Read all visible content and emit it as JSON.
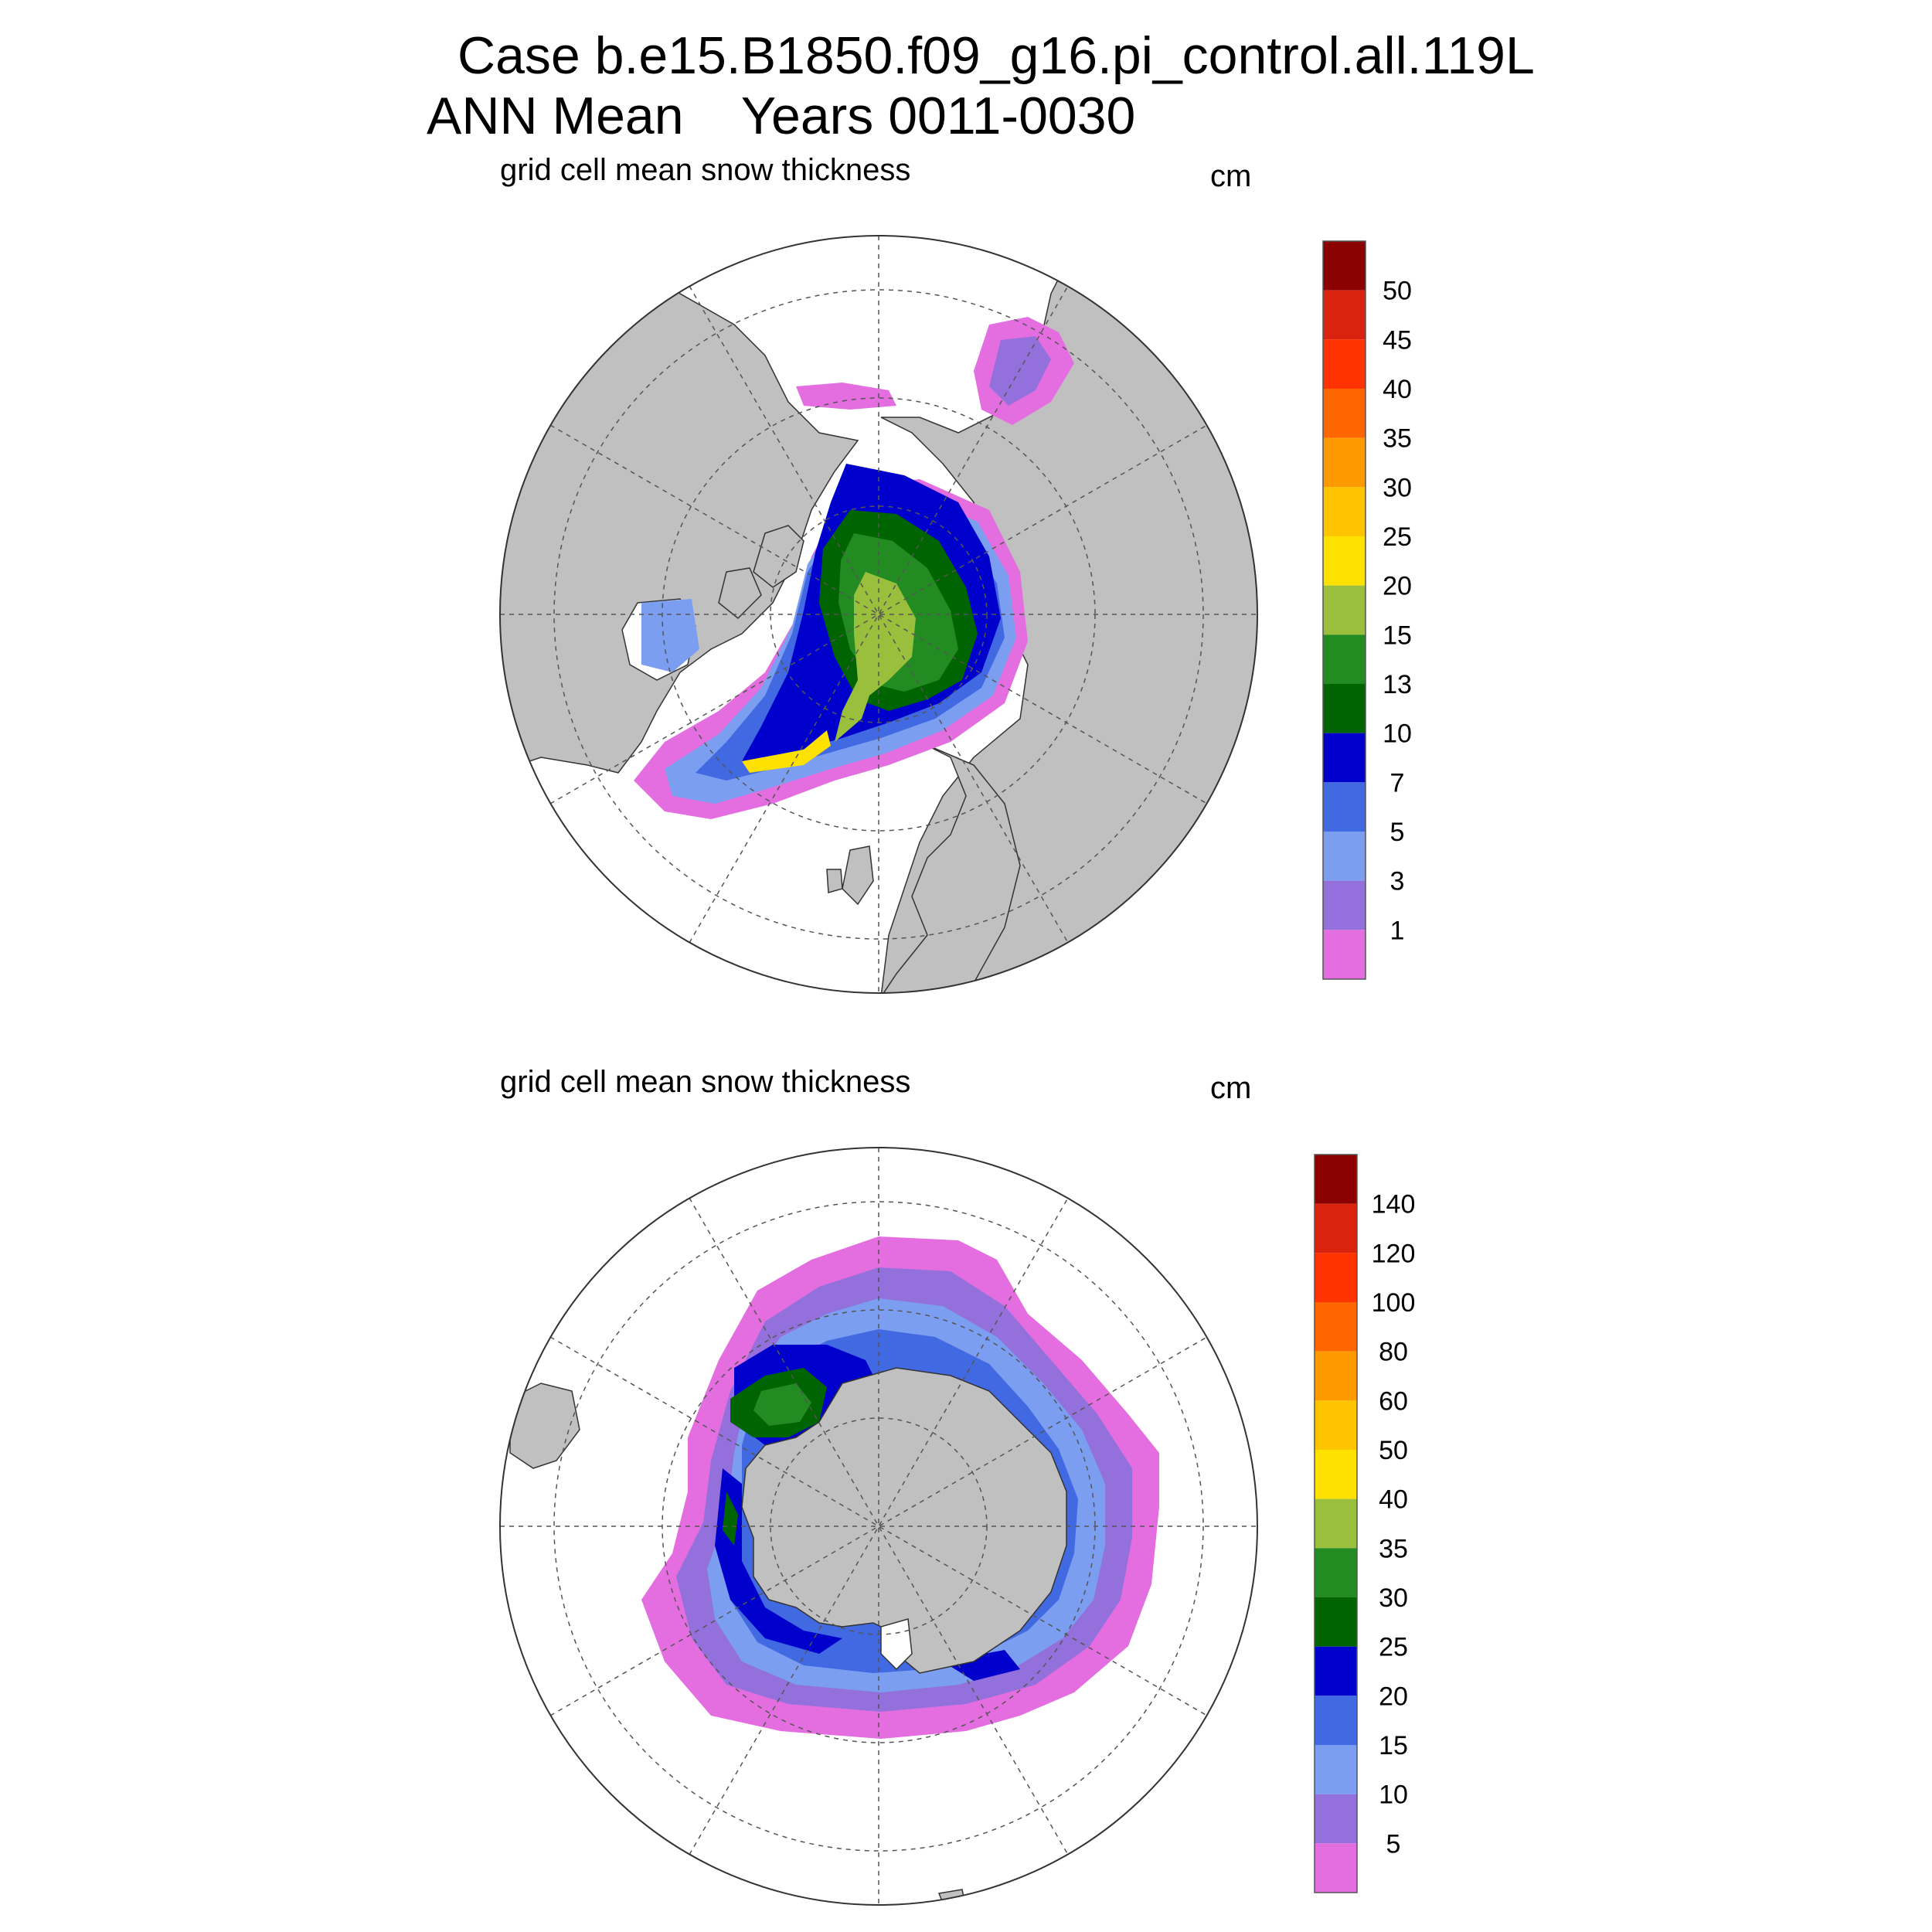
{
  "header": {
    "line1": "Case b.e15.B1850.f09_g16.pi_control.all.119L",
    "line2": "ANN Mean    Years 0011-0030"
  },
  "panels": [
    {
      "id": "north",
      "subtitle": "grid cell mean snow thickness",
      "units": "cm",
      "colorbar": {
        "labels": [
          "50",
          "45",
          "40",
          "35",
          "30",
          "25",
          "20",
          "15",
          "13",
          "10",
          "7",
          "5",
          "3",
          "1"
        ],
        "colors": [
          "#8b0000",
          "#d9230f",
          "#ff3300",
          "#ff6600",
          "#ff9900",
          "#ffc400",
          "#ffe100",
          "#9abf3c",
          "#228b22",
          "#006400",
          "#0000cd",
          "#4169e1",
          "#7b9ef0",
          "#9370db",
          "#e46ee0"
        ]
      }
    },
    {
      "id": "south",
      "subtitle": "grid cell mean snow thickness",
      "units": "cm",
      "colorbar": {
        "labels": [
          "140",
          "120",
          "100",
          "80",
          "60",
          "50",
          "40",
          "35",
          "30",
          "25",
          "20",
          "15",
          "10",
          "5"
        ],
        "colors": [
          "#8b0000",
          "#d9230f",
          "#ff3300",
          "#ff6600",
          "#ff9900",
          "#ffc400",
          "#ffe100",
          "#9abf3c",
          "#228b22",
          "#006400",
          "#0000cd",
          "#4169e1",
          "#7b9ef0",
          "#9370db",
          "#e46ee0"
        ]
      }
    }
  ],
  "colors": {
    "land": "#c0c0c0",
    "grid": "#555555",
    "border": "#333333"
  }
}
